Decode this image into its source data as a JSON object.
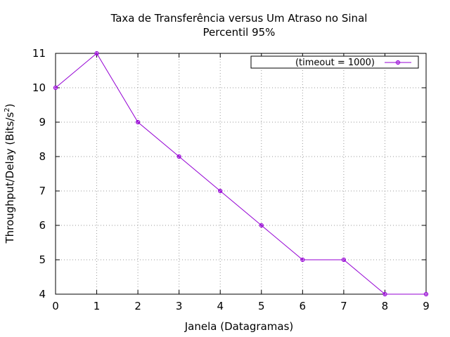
{
  "chart_data": {
    "type": "line",
    "title_line1": "Taxa de Transferência versus Um Atraso no Sinal",
    "title_line2": "Percentil 95%",
    "xlabel": "Janela (Datagramas)",
    "ylabel_main": "Throughput/Delay (Bits/s",
    "ylabel_sup": "2",
    "ylabel_close": ")",
    "x": [
      0,
      1,
      2,
      3,
      4,
      5,
      6,
      7,
      8,
      9
    ],
    "xlim": [
      0,
      9
    ],
    "ylim": [
      4,
      11
    ],
    "xticks": [
      "0",
      "1",
      "2",
      "3",
      "4",
      "5",
      "6",
      "7",
      "8",
      "9"
    ],
    "yticks": [
      "4",
      "5",
      "6",
      "7",
      "8",
      "9",
      "10",
      "11"
    ],
    "grid": true,
    "legend_position": "top-right",
    "series": [
      {
        "name": "(timeout = 1000)",
        "color": "#9400d3",
        "marker": "circle-cross",
        "values": [
          10,
          11,
          9,
          8,
          7,
          6,
          5,
          5,
          4,
          4
        ]
      }
    ]
  }
}
